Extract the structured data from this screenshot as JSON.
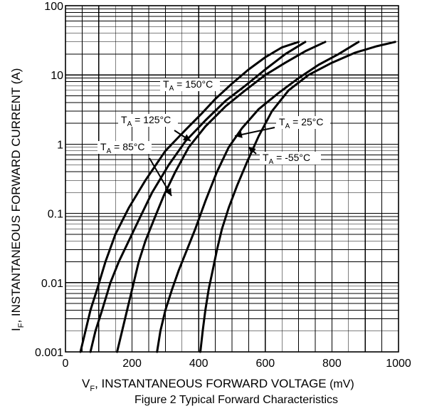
{
  "chart_data": {
    "type": "line",
    "title": "",
    "xlabel_main": "V",
    "xlabel_sub": "F",
    "xlabel_rest": ", INSTANTANEOUS FORWARD VOLTAGE",
    "xlabel_unit": " (mV)",
    "ylabel_main": "I",
    "ylabel_sub": "F",
    "ylabel_rest": ", INSTANTANEOUS FORWARD CURRENT (A)",
    "caption": "Figure 2 Typical Forward Characteristics",
    "xlim": [
      0,
      1000
    ],
    "ylim": [
      0.001,
      100
    ],
    "xscale": "linear",
    "yscale": "log",
    "x_ticks": [
      "0",
      "200",
      "400",
      "600",
      "800",
      "1000"
    ],
    "y_ticks": [
      "100",
      "10",
      "1",
      "0.1",
      "0.01",
      "0.001"
    ],
    "grid": true,
    "series": [
      {
        "name": "T_A = 150°C",
        "x": [
          45,
          60,
          75,
          95,
          120,
          150,
          190,
          240,
          300,
          360,
          410,
          450,
          500,
          550,
          600,
          650,
          700
        ],
        "y": [
          0.001,
          0.002,
          0.004,
          0.008,
          0.02,
          0.05,
          0.12,
          0.3,
          0.8,
          1.6,
          2.8,
          4.5,
          7.5,
          12,
          18,
          25,
          30
        ]
      },
      {
        "name": "T_A = 125°C",
        "x": [
          75,
          90,
          110,
          135,
          160,
          190,
          220,
          260,
          310,
          360,
          420,
          480,
          540,
          600,
          660,
          720
        ],
        "y": [
          0.001,
          0.002,
          0.004,
          0.01,
          0.02,
          0.04,
          0.08,
          0.2,
          0.5,
          1.1,
          2.2,
          4.2,
          7,
          12,
          20,
          30
        ]
      },
      {
        "name": "T_A = 85°C",
        "x": [
          155,
          170,
          185,
          200,
          220,
          240,
          265,
          295,
          330,
          370,
          420,
          480,
          540,
          600,
          660,
          720,
          780
        ],
        "y": [
          0.001,
          0.002,
          0.004,
          0.008,
          0.02,
          0.04,
          0.08,
          0.18,
          0.4,
          0.9,
          1.8,
          3.5,
          6,
          10,
          15,
          22,
          30
        ]
      },
      {
        "name": "T_A = 25°C",
        "x": [
          275,
          285,
          300,
          320,
          340,
          365,
          390,
          420,
          455,
          490,
          530,
          580,
          640,
          700,
          760,
          820,
          880
        ],
        "y": [
          0.001,
          0.002,
          0.004,
          0.008,
          0.015,
          0.03,
          0.06,
          0.15,
          0.4,
          0.9,
          1.7,
          3.2,
          5.5,
          9,
          14,
          20,
          30
        ]
      },
      {
        "name": "T_A = -55°C",
        "x": [
          405,
          412,
          420,
          430,
          442,
          455,
          470,
          490,
          515,
          545,
          580,
          620,
          670,
          730,
          800,
          870,
          935,
          990
        ],
        "y": [
          0.001,
          0.002,
          0.004,
          0.008,
          0.015,
          0.03,
          0.06,
          0.12,
          0.25,
          0.55,
          1.3,
          3,
          6,
          10,
          15,
          21,
          26,
          30
        ]
      }
    ],
    "annotations": [
      {
        "main": "T",
        "sub": "A",
        "rest": " = 150°C"
      },
      {
        "main": "T",
        "sub": "A",
        "rest": " = 125°C"
      },
      {
        "main": "T",
        "sub": "A",
        "rest": " = 85°C"
      },
      {
        "main": "T",
        "sub": "A",
        "rest": " = 25°C"
      },
      {
        "main": "T",
        "sub": "A",
        "rest": " = -55°C"
      }
    ]
  }
}
